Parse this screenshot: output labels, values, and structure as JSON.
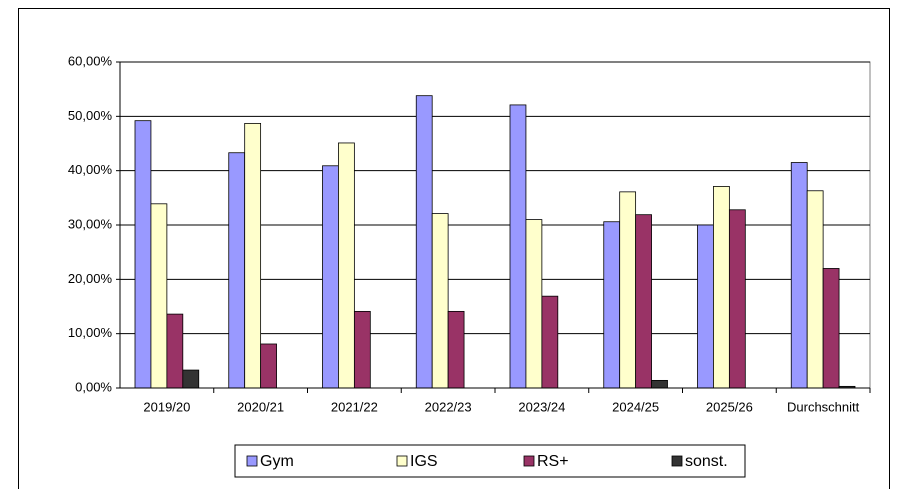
{
  "chart_data": {
    "type": "bar",
    "categories": [
      "2019/20",
      "2020/21",
      "2021/22",
      "2022/23",
      "2023/24",
      "2024/25",
      "2025/26",
      "Durchschnitt"
    ],
    "series": [
      {
        "name": "Gym",
        "color": "#9999ff",
        "values": [
          49.2,
          43.3,
          40.9,
          53.8,
          52.1,
          30.6,
          30.0,
          41.5
        ]
      },
      {
        "name": "IGS",
        "color": "#ffffcc",
        "values": [
          33.9,
          48.7,
          45.1,
          32.1,
          31.0,
          36.1,
          37.1,
          36.3
        ]
      },
      {
        "name": "RS+",
        "color": "#993366",
        "values": [
          13.6,
          8.1,
          14.1,
          14.1,
          16.9,
          31.9,
          32.8,
          22.0
        ]
      },
      {
        "name": "sonst.",
        "color": "#333333",
        "values": [
          3.3,
          0,
          0,
          0,
          0,
          1.4,
          0,
          0.3
        ]
      }
    ],
    "ylim": [
      0,
      60
    ],
    "yticks": [
      {
        "value": 0,
        "label": "0,00%"
      },
      {
        "value": 10,
        "label": "10,00%"
      },
      {
        "value": 20,
        "label": "20,00%"
      },
      {
        "value": 30,
        "label": "30,00%"
      },
      {
        "value": 40,
        "label": "40,00%"
      },
      {
        "value": 50,
        "label": "50,00%"
      },
      {
        "value": 60,
        "label": "60,00%"
      }
    ],
    "grid": true,
    "legend": "bottom"
  }
}
